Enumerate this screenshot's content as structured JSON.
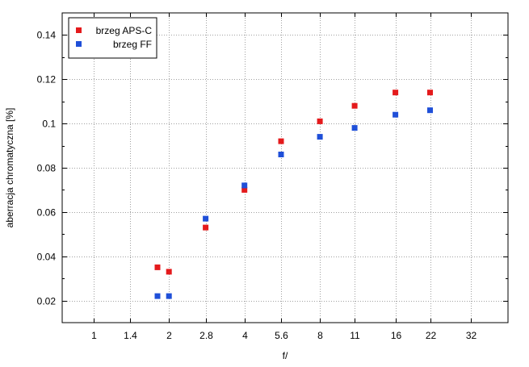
{
  "chart_data": {
    "type": "scatter",
    "xlabel": "f/",
    "ylabel": "aberracja chromatyczna [%]",
    "x_scale": "log",
    "x_ticks": [
      1,
      1.4,
      2,
      2.8,
      4,
      5.6,
      8,
      11,
      16,
      22,
      32
    ],
    "x_tick_labels": [
      "1",
      "1.4",
      "2",
      "2.8",
      "4",
      "5.6",
      "8",
      "11",
      "16",
      "22",
      "32"
    ],
    "xlim": [
      0.75,
      45
    ],
    "y_ticks": [
      0.02,
      0.04,
      0.06,
      0.08,
      0.1,
      0.12,
      0.14
    ],
    "y_tick_labels": [
      "0.02",
      "0.04",
      "0.06",
      "0.08",
      "0.1",
      "0.12",
      "0.14"
    ],
    "ylim": [
      0.01,
      0.15
    ],
    "grid": true,
    "legend_position": "top-left",
    "series": [
      {
        "name": "brzeg APS-C",
        "color": "#e41a1c",
        "x": [
          1.8,
          2,
          2.8,
          4,
          5.6,
          8,
          11,
          16,
          22
        ],
        "y": [
          0.035,
          0.033,
          0.053,
          0.07,
          0.092,
          0.101,
          0.108,
          0.114,
          0.114
        ]
      },
      {
        "name": "brzeg FF",
        "color": "#1f4fd8",
        "x": [
          1.8,
          2,
          2.8,
          4,
          5.6,
          8,
          11,
          16,
          22
        ],
        "y": [
          0.022,
          0.022,
          0.057,
          0.072,
          0.086,
          0.094,
          0.098,
          0.104,
          0.106
        ]
      }
    ]
  }
}
